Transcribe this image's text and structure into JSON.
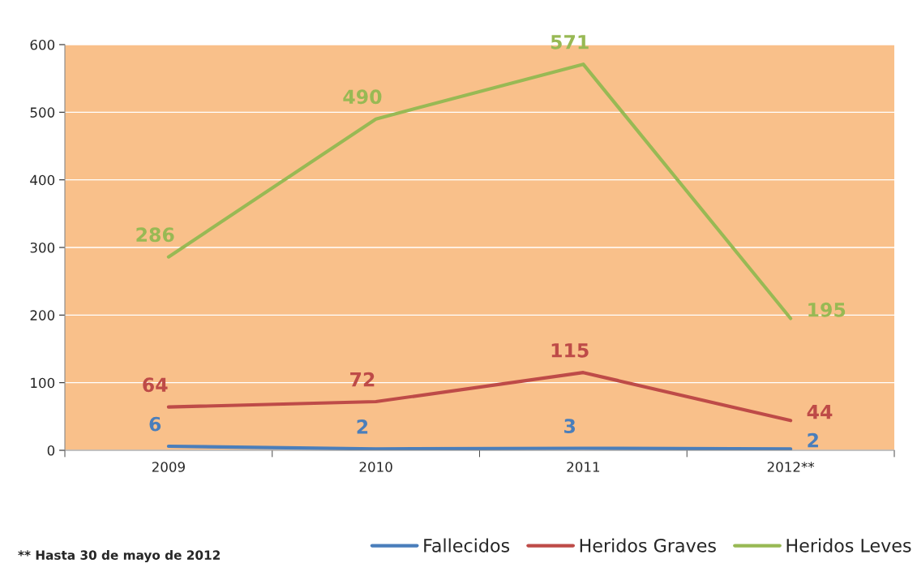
{
  "chart_data": {
    "type": "line",
    "categories": [
      "2009",
      "2010",
      "2011",
      "2012**"
    ],
    "series": [
      {
        "name": "Fallecidos",
        "color": "#4a7ebb",
        "values": [
          6,
          2,
          3,
          2
        ]
      },
      {
        "name": "Heridos Graves",
        "color": "#be4b48",
        "values": [
          64,
          72,
          115,
          44
        ]
      },
      {
        "name": "Heridos Leves",
        "color": "#98b954",
        "values": [
          286,
          490,
          571,
          195
        ]
      }
    ],
    "ylim": [
      0,
      600
    ],
    "yticks": [
      0,
      100,
      200,
      300,
      400,
      500,
      600
    ],
    "grid": "y",
    "legend": "bottom",
    "marker": "none",
    "line_style": "solid",
    "data_labels": true,
    "annotations": [
      "** Hasta 30 de mayo de 2012"
    ]
  }
}
